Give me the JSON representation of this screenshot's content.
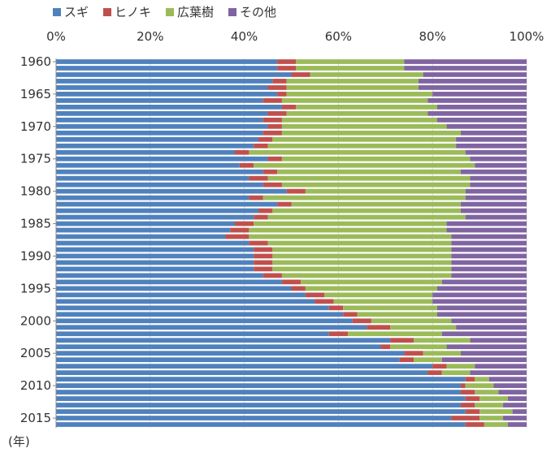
{
  "chart_data": {
    "type": "bar",
    "orientation": "horizontal",
    "stacked": "percent",
    "xlabel": "",
    "ylabel": "(年)",
    "xlim": [
      0,
      100
    ],
    "x_ticks": [
      "0%",
      "20%",
      "40%",
      "60%",
      "80%",
      "100%"
    ],
    "y_ticks": [
      "1960",
      "1965",
      "1970",
      "1975",
      "1980",
      "1985",
      "1990",
      "1995",
      "2000",
      "2005",
      "2010",
      "2015"
    ],
    "grid": true,
    "legend_position": "top",
    "categories": [
      1960,
      1961,
      1962,
      1963,
      1964,
      1965,
      1966,
      1967,
      1968,
      1969,
      1970,
      1971,
      1972,
      1973,
      1974,
      1975,
      1976,
      1977,
      1978,
      1979,
      1980,
      1981,
      1982,
      1983,
      1984,
      1985,
      1986,
      1987,
      1988,
      1989,
      1990,
      1991,
      1992,
      1993,
      1994,
      1995,
      1996,
      1997,
      1998,
      1999,
      2000,
      2001,
      2002,
      2003,
      2004,
      2005,
      2006,
      2007,
      2008,
      2009,
      2010,
      2011,
      2012,
      2013,
      2014,
      2015,
      2016
    ],
    "series": [
      {
        "name": "スギ",
        "color": "#4f81bd",
        "values": [
          47,
          47,
          50,
          46,
          45,
          47,
          44,
          48,
          45,
          44,
          45,
          44,
          43,
          42,
          38,
          45,
          39,
          44,
          41,
          44,
          49,
          41,
          47,
          43,
          42,
          38,
          37,
          36,
          41,
          42,
          42,
          42,
          42,
          44,
          48,
          50,
          53,
          55,
          58,
          61,
          63,
          66,
          58,
          71,
          69,
          74,
          73,
          80,
          79,
          87,
          86,
          86,
          87,
          86,
          87,
          84,
          87
        ]
      },
      {
        "name": "ヒノキ",
        "color": "#c0504d",
        "values": [
          4,
          4,
          4,
          3,
          4,
          2,
          4,
          3,
          4,
          4,
          3,
          4,
          3,
          3,
          3,
          3,
          3,
          3,
          4,
          4,
          4,
          3,
          3,
          3,
          3,
          4,
          4,
          5,
          4,
          4,
          4,
          4,
          4,
          4,
          4,
          3,
          4,
          4,
          3,
          3,
          4,
          5,
          4,
          5,
          2,
          4,
          3,
          3,
          3,
          2,
          1,
          3,
          3,
          3,
          3,
          6,
          4
        ]
      },
      {
        "name": "広葉樹",
        "color": "#9bbb59",
        "values": [
          23,
          23,
          24,
          28,
          28,
          31,
          31,
          30,
          30,
          33,
          35,
          38,
          39,
          40,
          46,
          40,
          47,
          39,
          43,
          40,
          34,
          43,
          36,
          40,
          42,
          41,
          42,
          43,
          39,
          38,
          38,
          38,
          38,
          36,
          30,
          28,
          23,
          21,
          20,
          17,
          17,
          14,
          20,
          12,
          12,
          8,
          6,
          6,
          6,
          3,
          6,
          5,
          6,
          6,
          7,
          5,
          5
        ]
      },
      {
        "name": "その他",
        "color": "#8064a2",
        "values": [
          26,
          26,
          22,
          23,
          23,
          20,
          21,
          19,
          21,
          19,
          17,
          14,
          15,
          15,
          13,
          12,
          11,
          14,
          12,
          12,
          13,
          13,
          14,
          14,
          13,
          17,
          17,
          16,
          16,
          16,
          16,
          16,
          16,
          16,
          18,
          19,
          20,
          20,
          19,
          19,
          16,
          15,
          18,
          12,
          17,
          14,
          18,
          11,
          12,
          8,
          7,
          6,
          4,
          5,
          3,
          5,
          4
        ]
      }
    ]
  }
}
